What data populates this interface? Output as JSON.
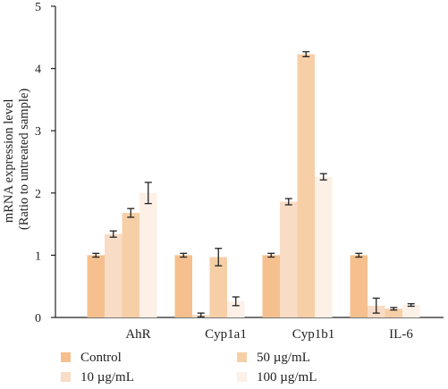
{
  "chart_data": {
    "type": "bar",
    "ylabel_lines": [
      "mRNA expression level",
      "(Ratio to untreated sample)"
    ],
    "ylim": [
      0,
      5
    ],
    "yticks": [
      0,
      1,
      2,
      3,
      4,
      5
    ],
    "grid": false,
    "legend_position": "bottom",
    "categories": [
      "AhR",
      "Cyp1a1",
      "Cyp1b1",
      "IL-6"
    ],
    "series": [
      {
        "name": "Control",
        "color": "#f5c08e",
        "values": [
          1.0,
          1.0,
          1.0,
          1.0
        ],
        "errors": [
          0.03,
          0.03,
          0.03,
          0.03
        ]
      },
      {
        "name": "10 µg/mL",
        "color": "#f9dcc6",
        "values": [
          1.34,
          0.04,
          1.86,
          0.19
        ],
        "errors": [
          0.05,
          0.03,
          0.05,
          0.12
        ]
      },
      {
        "name": "50 µg/mL",
        "color": "#f7cfa7",
        "values": [
          1.68,
          0.97,
          4.23,
          0.14
        ],
        "errors": [
          0.07,
          0.14,
          0.04,
          0.02
        ]
      },
      {
        "name": "100 µg/mL",
        "color": "#fdf0e6",
        "values": [
          2.0,
          0.26,
          2.26,
          0.2
        ],
        "errors": [
          0.17,
          0.07,
          0.05,
          0.02
        ]
      }
    ]
  }
}
